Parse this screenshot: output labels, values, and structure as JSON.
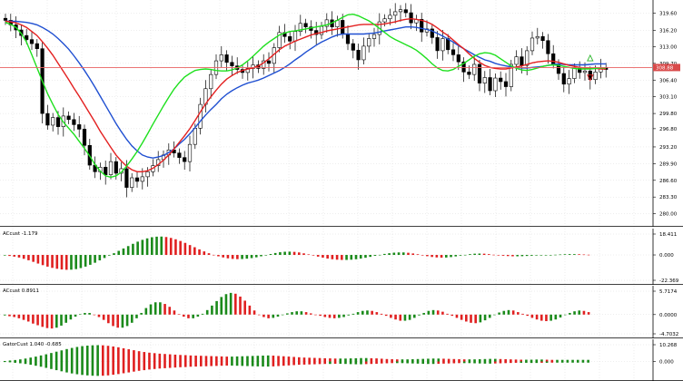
{
  "colors": {
    "background": "#ffffff",
    "grid": "#dcdcdc",
    "candle": "#000000",
    "ma_slow": "#1f4fd1",
    "ma_mid": "#e32020",
    "ma_fast": "#1ee01e",
    "price_line": "#e86060",
    "hist_up": "#1a8a1a",
    "hist_down": "#e02020",
    "arrow_up": "#2bb52b",
    "arrow_down": "#e02020"
  },
  "price_pane": {
    "current_price": "308.88",
    "y_ticks": [
      "319.60",
      "316.20",
      "313.00",
      "309.70",
      "306.40",
      "303.10",
      "299.80",
      "296.80",
      "293.20",
      "289.90",
      "286.60",
      "283.30",
      "280.00"
    ]
  },
  "ac_pane_1": {
    "title": "ACcust -1.179",
    "y_ticks": [
      "18.411",
      "0.000",
      "-22.369"
    ]
  },
  "ac_pane_2": {
    "title": "ACcust 0.8911",
    "y_ticks": [
      "5.7174",
      "0.0000",
      "-4.7032"
    ]
  },
  "gator_pane": {
    "title": "GatorCust 1.040 -0.685",
    "y_ticks": [
      "10.268",
      "0.000"
    ]
  },
  "chart_data": [
    {
      "type": "candlestick",
      "pane": "price",
      "ylim": [
        278.5,
        321.5
      ],
      "current_price": 308.88,
      "close": [
        318.2,
        317.3,
        316.3,
        315.2,
        314.4,
        313.6,
        312.6,
        299.8,
        297.5,
        299.0,
        297.2,
        299.3,
        298.6,
        297.6,
        296.7,
        293.5,
        289.6,
        288.3,
        289.2,
        287.7,
        290.3,
        288.0,
        288.9,
        285.2,
        287.1,
        286.4,
        287.3,
        288.3,
        289.5,
        290.7,
        291.6,
        292.6,
        292.0,
        291.1,
        290.3,
        293.7,
        296.9,
        301.6,
        304.7,
        307.5,
        310.2,
        311.4,
        309.9,
        309.2,
        308.5,
        307.9,
        308.7,
        309.4,
        308.7,
        310.2,
        309.7,
        312.8,
        315.8,
        315.0,
        314.1,
        316.0,
        317.6,
        316.9,
        316.2,
        315.4,
        317.0,
        318.3,
        316.9,
        318.2,
        315.5,
        313.6,
        312.3,
        310.4,
        313.1,
        314.6,
        315.4,
        317.9,
        318.5,
        319.2,
        319.9,
        320.3,
        319.7,
        317.7,
        318.4,
        315.9,
        316.5,
        314.8,
        312.2,
        314.6,
        312.4,
        311.4,
        310.0,
        308.0,
        307.5,
        309.5,
        305.8,
        306.9,
        304.3,
        306.8,
        306.1,
        305.1,
        309.5,
        311.0,
        309.3,
        312.2,
        314.7,
        315.0,
        314.2,
        311.6,
        309.6,
        307.7,
        305.6,
        306.7,
        308.8,
        307.9,
        308.2,
        306.5,
        308.0,
        308.9,
        308.5
      ],
      "ma_blue": [
        318.0,
        318.0,
        318.0,
        317.9,
        317.8,
        317.6,
        317.3,
        316.8,
        316.2,
        315.5,
        314.6,
        313.6,
        312.5,
        311.2,
        309.8,
        308.3,
        306.7,
        305.0,
        303.2,
        301.4,
        299.6,
        297.8,
        296.2,
        294.7,
        293.4,
        292.4,
        291.6,
        291.2,
        291.0,
        291.2,
        291.5,
        292.1,
        292.8,
        293.8,
        294.7,
        295.8,
        297.0,
        298.3,
        299.5,
        300.6,
        301.6,
        302.7,
        303.6,
        304.3,
        304.9,
        305.4,
        305.8,
        306.1,
        306.4,
        306.8,
        307.3,
        307.8,
        308.3,
        308.9,
        309.6,
        310.4,
        311.1,
        311.9,
        312.6,
        313.3,
        313.9,
        314.4,
        314.9,
        315.3,
        315.5,
        315.5,
        315.5,
        315.5,
        315.5,
        315.6,
        315.7,
        315.9,
        316.1,
        316.3,
        316.5,
        316.7,
        316.9,
        316.9,
        316.8,
        316.6,
        316.4,
        316.1,
        315.6,
        315.1,
        314.5,
        313.9,
        313.2,
        312.6,
        312.0,
        311.4,
        310.9,
        310.4,
        310.1,
        309.7,
        309.4,
        309.2,
        309.0,
        308.9,
        308.8,
        308.8,
        308.9,
        309.0,
        309.1,
        309.3,
        309.5,
        309.6,
        309.5,
        309.4,
        309.4,
        309.4,
        309.4,
        309.5,
        309.6,
        309.6,
        309.6
      ],
      "ma_red": [
        318.0,
        317.9,
        317.7,
        317.3,
        316.8,
        316.0,
        315.2,
        314.0,
        312.7,
        311.3,
        309.7,
        308.1,
        306.5,
        304.8,
        303.2,
        301.5,
        299.8,
        298.1,
        296.3,
        294.7,
        293.1,
        291.6,
        290.4,
        289.4,
        288.7,
        288.3,
        288.3,
        288.5,
        289.0,
        289.7,
        290.6,
        291.6,
        292.8,
        294.1,
        295.4,
        296.8,
        298.4,
        300.1,
        301.7,
        303.1,
        304.4,
        305.6,
        306.6,
        307.3,
        307.9,
        308.3,
        308.6,
        308.8,
        309.2,
        309.8,
        310.6,
        311.5,
        312.4,
        313.1,
        313.6,
        314.1,
        314.5,
        314.9,
        315.3,
        315.6,
        315.8,
        316.1,
        316.3,
        316.5,
        316.7,
        316.9,
        317.1,
        317.3,
        317.4,
        317.4,
        317.4,
        317.4,
        317.5,
        317.7,
        317.9,
        318.2,
        318.4,
        318.5,
        318.4,
        318.2,
        317.9,
        317.4,
        316.7,
        315.9,
        315.2,
        314.3,
        313.4,
        312.6,
        311.6,
        310.7,
        309.9,
        309.3,
        308.9,
        308.7,
        308.6,
        308.6,
        308.8,
        309.0,
        309.2,
        309.5,
        309.8,
        310.0,
        310.1,
        310.2,
        310.1,
        309.9,
        309.6,
        309.3,
        309.1,
        308.9,
        308.8,
        308.7,
        308.7,
        308.6,
        308.6
      ],
      "ma_green": [
        317.8,
        317.4,
        316.8,
        315.6,
        313.9,
        311.4,
        308.8,
        306.2,
        303.7,
        301.6,
        299.6,
        298.1,
        296.9,
        295.7,
        294.3,
        292.9,
        291.4,
        289.7,
        288.4,
        287.5,
        287.2,
        287.5,
        288.2,
        289.4,
        290.8,
        292.3,
        294.0,
        295.8,
        297.7,
        299.5,
        301.3,
        303.0,
        304.6,
        305.9,
        307.0,
        307.7,
        308.3,
        308.5,
        308.6,
        308.5,
        308.3,
        308.2,
        308.2,
        308.4,
        308.8,
        309.4,
        310.2,
        311.1,
        312.1,
        313.1,
        313.9,
        314.6,
        315.3,
        315.7,
        316.0,
        316.1,
        316.3,
        316.5,
        316.7,
        316.9,
        317.1,
        317.3,
        317.7,
        318.2,
        318.8,
        319.3,
        319.4,
        319.1,
        318.6,
        318.1,
        317.4,
        316.6,
        315.8,
        315.0,
        314.4,
        313.9,
        313.4,
        312.9,
        312.3,
        311.5,
        310.6,
        309.6,
        308.8,
        308.3,
        308.2,
        308.5,
        309.1,
        309.7,
        310.4,
        311.1,
        311.6,
        311.8,
        311.7,
        311.3,
        310.6,
        309.9,
        309.2,
        308.7,
        308.4,
        308.3,
        308.5,
        308.8,
        309.1,
        309.3,
        309.4,
        309.3,
        309.1,
        308.9,
        308.7,
        308.6,
        308.6,
        308.6,
        308.7,
        308.8,
        308.8
      ]
    },
    {
      "type": "bar",
      "pane": "ACcust",
      "title": "ACcust -1.179",
      "ylim": [
        -22.369,
        18.411
      ],
      "values": [
        -0.5,
        -0.9,
        -1.5,
        -2.3,
        -3.4,
        -4.7,
        -6.1,
        -7.6,
        -9.0,
        -10.3,
        -11.4,
        -12.2,
        -12.8,
        -13.1,
        -13.0,
        -12.5,
        -11.6,
        -10.3,
        -8.7,
        -6.9,
        -4.8,
        -2.7,
        -0.6,
        1.5,
        3.6,
        5.7,
        7.8,
        9.8,
        11.7,
        13.3,
        14.6,
        15.6,
        16.1,
        16.2,
        15.8,
        15.0,
        13.8,
        12.3,
        10.6,
        8.7,
        6.8,
        4.9,
        3.1,
        1.5,
        0.1,
        -1.2,
        -2.2,
        -3.0,
        -3.5,
        -3.7,
        -3.6,
        -3.3,
        -2.8,
        -2.1,
        -1.2,
        -0.2,
        0.8,
        1.7,
        2.4,
        2.8,
        2.9,
        2.7,
        2.2,
        1.4,
        0.5,
        -0.5,
        -1.5,
        -2.4,
        -3.2,
        -3.8,
        -4.2,
        -4.4,
        -4.4,
        -4.2,
        -3.8,
        -3.2,
        -2.5,
        -1.7,
        -0.8,
        0.1,
        0.9,
        1.5,
        2.0,
        2.2,
        2.2,
        1.9,
        1.3,
        0.6,
        -0.3,
        -1.1,
        -1.8,
        -2.2,
        -2.4,
        -2.3,
        -1.9,
        -1.3,
        -0.6,
        0.1,
        0.7,
        1.1,
        1.2,
        1.1,
        0.7,
        0.2,
        -0.3,
        -0.7,
        -1.0,
        -1.2,
        -1.2,
        -1.1,
        -0.9,
        -0.7,
        -0.5,
        -0.3,
        -0.2,
        -0.1,
        0.2,
        0.4,
        0.6,
        0.7,
        0.7,
        0.6,
        0.4,
        0.2
      ]
    },
    {
      "type": "bar",
      "pane": "ACcust2",
      "title": "ACcust 0.8911",
      "ylim": [
        -4.7032,
        5.7174
      ],
      "values": [
        -0.2,
        -0.4,
        -0.6,
        -0.9,
        -1.3,
        -1.7,
        -2.2,
        -2.6,
        -3.0,
        -3.3,
        -3.4,
        -3.2,
        -2.7,
        -2.0,
        -1.2,
        -0.5,
        0.1,
        0.4,
        0.4,
        0.0,
        -0.6,
        -1.3,
        -2.1,
        -2.8,
        -3.2,
        -3.2,
        -2.8,
        -2.0,
        -0.9,
        0.4,
        1.6,
        2.5,
        3.0,
        3.0,
        2.6,
        1.9,
        1.0,
        0.1,
        -0.5,
        -0.9,
        -0.9,
        -0.5,
        0.2,
        1.1,
        2.2,
        3.3,
        4.3,
        5.0,
        5.3,
        5.1,
        4.4,
        3.4,
        2.2,
        1.0,
        0.0,
        -0.6,
        -0.9,
        -0.8,
        -0.5,
        -0.1,
        0.3,
        0.6,
        0.8,
        0.8,
        0.6,
        0.3,
        0.0,
        -0.3,
        -0.6,
        -0.8,
        -0.9,
        -0.8,
        -0.6,
        -0.2,
        0.2,
        0.6,
        0.9,
        1.0,
        0.9,
        0.6,
        0.2,
        -0.3,
        -0.8,
        -1.2,
        -1.5,
        -1.5,
        -1.3,
        -0.8,
        -0.2,
        0.4,
        0.9,
        1.1,
        1.0,
        0.7,
        0.2,
        -0.3,
        -0.8,
        -1.3,
        -1.7,
        -2.0,
        -2.1,
        -1.9,
        -1.4,
        -0.8,
        -0.1,
        0.5,
        0.9,
        1.1,
        1.0,
        0.6,
        0.2,
        -0.3,
        -0.8,
        -1.2,
        -1.5,
        -1.6,
        -1.5,
        -1.2,
        -0.7,
        -0.1,
        0.4,
        0.8,
        1.0,
        0.9,
        0.6
      ]
    },
    {
      "type": "bar",
      "pane": "GatorCust",
      "title": "GatorCust 1.040 -0.685",
      "ylim": [
        -10.268,
        10.268
      ],
      "upper": [
        0.3,
        0.6,
        0.9,
        1.3,
        1.8,
        2.4,
        3.0,
        3.7,
        4.4,
        5.2,
        6.0,
        6.8,
        7.6,
        8.3,
        8.9,
        9.4,
        9.7,
        9.9,
        10.0,
        9.9,
        9.6,
        9.2,
        8.7,
        8.1,
        7.5,
        6.9,
        6.3,
        5.8,
        5.4,
        5.1,
        4.8,
        4.6,
        4.4,
        4.2,
        4.0,
        3.9,
        3.7,
        3.6,
        3.5,
        3.4,
        3.3,
        3.2,
        3.1,
        3.0,
        3.0,
        3.1,
        3.2,
        3.3,
        3.4,
        3.5,
        3.6,
        3.7,
        3.6,
        3.4,
        3.2,
        3.0,
        2.8,
        2.6,
        2.4,
        2.3,
        2.2,
        2.1,
        2.0,
        1.9,
        1.8,
        1.8,
        1.8,
        1.9,
        2.0,
        2.1,
        2.1,
        2.0,
        1.9,
        1.7,
        1.5,
        1.4,
        1.3,
        1.3,
        1.3,
        1.4,
        1.5,
        1.6,
        1.7,
        1.8,
        1.8,
        1.7,
        1.6,
        1.5,
        1.4,
        1.3,
        1.3,
        1.3,
        1.4,
        1.5,
        1.6,
        1.6,
        1.5,
        1.4,
        1.3,
        1.2,
        1.1,
        1.1,
        1.1,
        1.2,
        1.2,
        1.1,
        1.0,
        1.0,
        1.0,
        1.0,
        1.0,
        1.0,
        1.0,
        1.0
      ],
      "lower": [
        -0.3,
        -0.5,
        -0.8,
        -1.1,
        -1.5,
        -2.0,
        -2.6,
        -3.2,
        -3.9,
        -4.6,
        -5.3,
        -6.0,
        -6.7,
        -7.3,
        -7.8,
        -8.2,
        -8.5,
        -8.7,
        -8.8,
        -8.7,
        -8.5,
        -8.1,
        -7.7,
        -7.2,
        -6.7,
        -6.2,
        -5.7,
        -5.3,
        -4.9,
        -4.6,
        -4.3,
        -4.1,
        -3.9,
        -3.7,
        -3.5,
        -3.4,
        -3.2,
        -3.1,
        -3.0,
        -2.9,
        -2.8,
        -2.7,
        -2.6,
        -2.5,
        -2.5,
        -2.6,
        -2.7,
        -2.8,
        -2.9,
        -3.0,
        -3.1,
        -3.1,
        -3.0,
        -2.8,
        -2.6,
        -2.4,
        -2.2,
        -2.0,
        -1.9,
        -1.8,
        -1.7,
        -1.6,
        -1.5,
        -1.5,
        -1.4,
        -1.4,
        -1.5,
        -1.6,
        -1.7,
        -1.7,
        -1.6,
        -1.5,
        -1.4,
        -1.2,
        -1.1,
        -1.0,
        -1.0,
        -1.0,
        -1.1,
        -1.2,
        -1.3,
        -1.4,
        -1.5,
        -1.5,
        -1.4,
        -1.3,
        -1.2,
        -1.1,
        -1.0,
        -1.0,
        -1.0,
        -1.1,
        -1.2,
        -1.3,
        -1.3,
        -1.2,
        -1.1,
        -1.0,
        -0.9,
        -0.8,
        -0.8,
        -0.8,
        -0.9,
        -0.9,
        -0.8,
        -0.8,
        -0.7,
        -0.7,
        -0.7,
        -0.7,
        -0.7,
        -0.7,
        -0.7,
        -0.7
      ]
    }
  ]
}
